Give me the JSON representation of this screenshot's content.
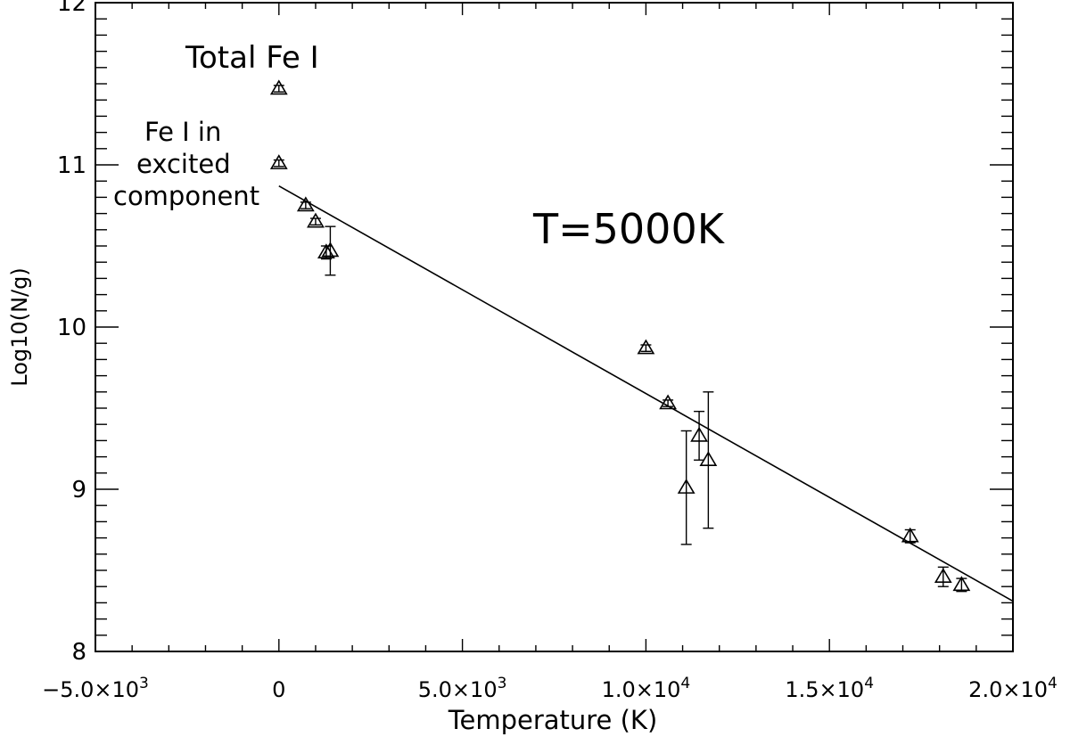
{
  "chart_data": {
    "type": "scatter",
    "xlabel": "Temperature (K)",
    "ylabel": "Log10(N/g)",
    "xlim": [
      -5000,
      20000
    ],
    "ylim": [
      8,
      12
    ],
    "x_ticks": [
      {
        "value": -5000,
        "mant": "−5.0×10",
        "exp": "3"
      },
      {
        "value": 0,
        "mant": "0",
        "exp": ""
      },
      {
        "value": 5000,
        "mant": "5.0×10",
        "exp": "3"
      },
      {
        "value": 10000,
        "mant": "1.0×10",
        "exp": "4"
      },
      {
        "value": 15000,
        "mant": "1.5×10",
        "exp": "4"
      },
      {
        "value": 20000,
        "mant": "2.0×10",
        "exp": "4"
      }
    ],
    "y_ticks": [
      8,
      9,
      10,
      11,
      12
    ],
    "grid": false,
    "series": [
      {
        "marker": "open-triangle",
        "points": [
          {
            "x": 0,
            "y": 11.47,
            "err": 0.02
          },
          {
            "x": 0,
            "y": 11.01,
            "err": 0.02
          },
          {
            "x": 730,
            "y": 10.75,
            "err": 0.02
          },
          {
            "x": 1000,
            "y": 10.65,
            "err": 0.02
          },
          {
            "x": 1290,
            "y": 10.46,
            "err": 0.04
          },
          {
            "x": 1400,
            "y": 10.47,
            "err": 0.15
          },
          {
            "x": 10000,
            "y": 9.87,
            "err": 0.02
          },
          {
            "x": 10600,
            "y": 9.53,
            "err": 0.02
          },
          {
            "x": 11100,
            "y": 9.01,
            "err": 0.35
          },
          {
            "x": 11450,
            "y": 9.33,
            "err": 0.15
          },
          {
            "x": 11700,
            "y": 9.18,
            "err": 0.42
          },
          {
            "x": 17200,
            "y": 8.71,
            "err": 0.04
          },
          {
            "x": 18100,
            "y": 8.46,
            "err": 0.06
          },
          {
            "x": 18600,
            "y": 8.41,
            "err": 0.04
          }
        ]
      }
    ],
    "fit_line": {
      "x": [
        0,
        20000
      ],
      "y": [
        10.87,
        8.31
      ]
    },
    "annotations": {
      "total": "Total Fe I",
      "excited_1": "Fe I in",
      "excited_2": "excited",
      "excited_3": "component",
      "temperature": "T=5000K"
    }
  }
}
